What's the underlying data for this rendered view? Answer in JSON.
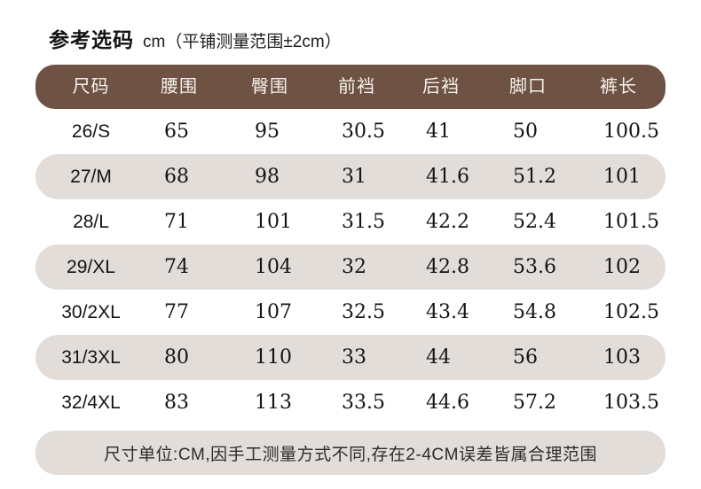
{
  "title": {
    "main": "参考选码",
    "unit": "cm（平铺测量范围±2cm）"
  },
  "colors": {
    "header_bg": "#6e5244",
    "header_text": "#f7f2ec",
    "alt_row_bg": "#e2ddd9",
    "body_text": "#141414",
    "page_bg": "#ffffff"
  },
  "footer": {
    "note": "尺寸单位:CM,因手工测量方式不同,存在2-4CM误差皆属合理范围"
  },
  "chart_data": {
    "type": "table",
    "title": "参考选码 cm（平铺测量范围±2cm）",
    "columns": [
      "尺码",
      "腰围",
      "臀围",
      "前裆",
      "后裆",
      "脚口",
      "裤长"
    ],
    "rows": [
      [
        "26/S",
        "65",
        "95",
        "30.5",
        "41",
        "50",
        "100.5"
      ],
      [
        "27/M",
        "68",
        "98",
        "31",
        "41.6",
        "51.2",
        "101"
      ],
      [
        "28/L",
        "71",
        "101",
        "31.5",
        "42.2",
        "52.4",
        "101.5"
      ],
      [
        "29/XL",
        "74",
        "104",
        "32",
        "42.8",
        "53.6",
        "102"
      ],
      [
        "30/2XL",
        "77",
        "107",
        "32.5",
        "43.4",
        "54.8",
        "102.5"
      ],
      [
        "31/3XL",
        "80",
        "110",
        "33",
        "44",
        "56",
        "103"
      ],
      [
        "32/4XL",
        "83",
        "113",
        "33.5",
        "44.6",
        "57.2",
        "103.5"
      ]
    ],
    "footnote": "尺寸单位:CM,因手工测量方式不同,存在2-4CM误差皆属合理范围",
    "layout": {
      "alternating_rows": true,
      "header_style": "dark-brown-pill",
      "unit": "cm"
    }
  }
}
